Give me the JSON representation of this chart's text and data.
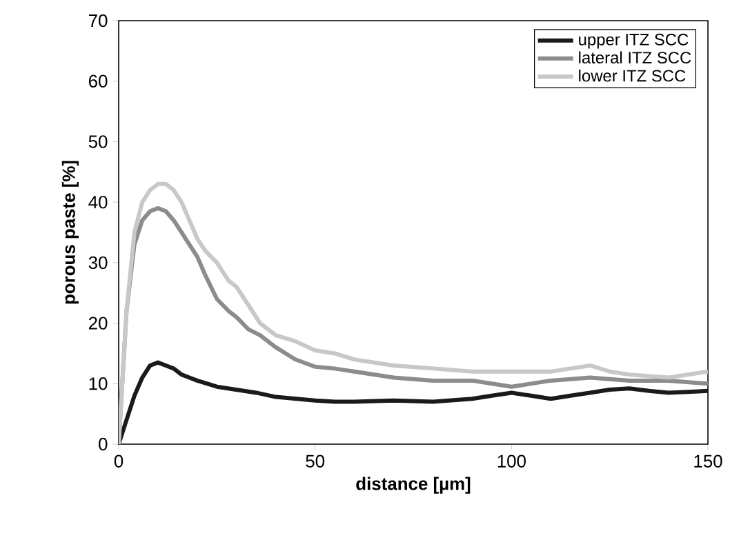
{
  "chart_data": {
    "type": "line",
    "xlabel": "distance [µm]",
    "ylabel": "porous paste [%]",
    "xlim": [
      0,
      150
    ],
    "ylim": [
      0,
      70
    ],
    "xticks": [
      0,
      50,
      100,
      150
    ],
    "yticks": [
      0,
      10,
      20,
      30,
      40,
      50,
      60,
      70
    ],
    "legend": "top right",
    "grid": false,
    "marker": "none",
    "line_style": "solid",
    "series": [
      {
        "name": "upper ITZ SCC",
        "color": "#1a1a1a",
        "x": [
          0,
          2,
          4,
          6,
          8,
          10,
          12,
          14,
          16,
          18,
          20,
          25,
          30,
          35,
          40,
          45,
          50,
          55,
          60,
          70,
          80,
          90,
          95,
          100,
          105,
          110,
          115,
          120,
          125,
          130,
          135,
          140,
          150
        ],
        "values": [
          0,
          4,
          8,
          11,
          13,
          13.5,
          13,
          12.5,
          11.5,
          11,
          10.5,
          9.5,
          9,
          8.5,
          7.8,
          7.5,
          7.2,
          7,
          7,
          7.2,
          7,
          7.5,
          8,
          8.5,
          8,
          7.5,
          8,
          8.5,
          9,
          9.2,
          8.8,
          8.5,
          8.8
        ]
      },
      {
        "name": "lateral ITZ SCC",
        "color": "#8c8c8c",
        "x": [
          0,
          2,
          4,
          6,
          8,
          10,
          12,
          14,
          16,
          18,
          20,
          22,
          25,
          28,
          30,
          33,
          36,
          40,
          45,
          50,
          55,
          60,
          65,
          70,
          80,
          90,
          95,
          100,
          110,
          120,
          130,
          140,
          150
        ],
        "values": [
          0,
          22,
          33,
          37,
          38.5,
          39,
          38.5,
          37,
          35,
          33,
          31,
          28,
          24,
          22,
          21,
          19,
          18,
          16,
          14,
          12.8,
          12.5,
          12,
          11.5,
          11,
          10.5,
          10.5,
          10,
          9.5,
          10.5,
          11,
          10.5,
          10.5,
          10
        ]
      },
      {
        "name": "lower ITZ SCC",
        "color": "#c8c8c8",
        "x": [
          0,
          2,
          4,
          6,
          8,
          10,
          12,
          14,
          16,
          18,
          20,
          22,
          25,
          28,
          30,
          33,
          36,
          40,
          45,
          50,
          55,
          60,
          65,
          70,
          80,
          90,
          100,
          110,
          115,
          120,
          125,
          130,
          140,
          150
        ],
        "values": [
          0,
          22,
          35,
          40,
          42,
          43,
          43,
          42,
          40,
          37,
          34,
          32,
          30,
          27,
          26,
          23,
          20,
          18,
          17,
          15.5,
          15,
          14,
          13.5,
          13,
          12.5,
          12,
          12,
          12,
          12.5,
          13,
          12,
          11.5,
          11,
          12
        ]
      }
    ]
  }
}
